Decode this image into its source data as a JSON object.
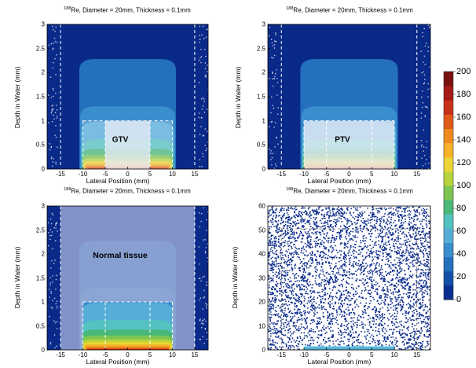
{
  "colors": {
    "background_dose": "#0a2a8a",
    "gtv_fill": "#e8ecf6",
    "normal_tissue_fill": "#9ea9d6",
    "dashed_line": "#ffffff"
  },
  "colorbar": {
    "ticks": [
      "0",
      "20",
      "40",
      "60",
      "80",
      "100",
      "120",
      "140",
      "160",
      "180",
      "200"
    ],
    "colors": [
      "#0b2f8f",
      "#1450a8",
      "#2470bd",
      "#3b8ecd",
      "#56aed8",
      "#54c2c0",
      "#49b878",
      "#7cc551",
      "#b8d43c",
      "#ecd534",
      "#f6b128",
      "#f08a1f",
      "#e05a1a",
      "#c9321a",
      "#a51a17",
      "#7a1010"
    ]
  },
  "chart_data": [
    {
      "type": "heatmap",
      "title_superscript": "188",
      "title": "Re, Diameter = 20mm, Thickness = 0.1mm",
      "xlabel": "Lateral Position (mm)",
      "ylabel": "Depth in Water (mm)",
      "xlim": [
        -18,
        18
      ],
      "ylim": [
        0,
        3
      ],
      "x_ticks": [
        "-15",
        "-10",
        "-5",
        "0",
        "5",
        "10",
        "15"
      ],
      "y_ticks": [
        "0",
        "0.5",
        "1",
        "1.5",
        "2",
        "2.5",
        "3"
      ],
      "region_label": "GTV",
      "highlight": "GTV"
    },
    {
      "type": "heatmap",
      "title_superscript": "188",
      "title": "Re, Diameter = 20mm, Thickness = 0.1mm",
      "xlabel": "Lateral Position (mm)",
      "ylabel": "Depth in Water (mm)",
      "xlim": [
        -18,
        18
      ],
      "ylim": [
        0,
        3
      ],
      "x_ticks": [
        "-15",
        "-10",
        "-5",
        "0",
        "5",
        "10",
        "15"
      ],
      "y_ticks": [
        "0",
        "0.5",
        "1",
        "1.5",
        "2",
        "2.5",
        "3"
      ],
      "region_label": "PTV",
      "highlight": "PTV"
    },
    {
      "type": "heatmap",
      "title_superscript": "188",
      "title": "Re, Diameter = 20mm, Thickness = 0.1mm",
      "xlabel": "Lateral Position (mm)",
      "ylabel": "Depth in Water (mm)",
      "xlim": [
        -18,
        18
      ],
      "ylim": [
        0,
        3
      ],
      "x_ticks": [
        "-15",
        "-10",
        "-5",
        "0",
        "5",
        "10",
        "15"
      ],
      "y_ticks": [
        "0",
        "0.5",
        "1",
        "1.5",
        "2",
        "2.5",
        "3"
      ],
      "region_label": "Normal tissue",
      "highlight": "Normal"
    },
    {
      "type": "heatmap",
      "title_superscript": "188",
      "title": "Re, Diameter = 20mm, Thickness = 0.1mm",
      "xlabel": "Lateral Position (mm)",
      "ylabel": "Depth in Water (mm)",
      "xlim": [
        -18,
        18
      ],
      "ylim": [
        0,
        60
      ],
      "x_ticks": [
        "-15",
        "-10",
        "-5",
        "0",
        "5",
        "10",
        "15"
      ],
      "y_ticks": [
        "0",
        "10",
        "20",
        "30",
        "40",
        "50",
        "60"
      ],
      "region_label": "",
      "highlight": "Scatter"
    }
  ]
}
